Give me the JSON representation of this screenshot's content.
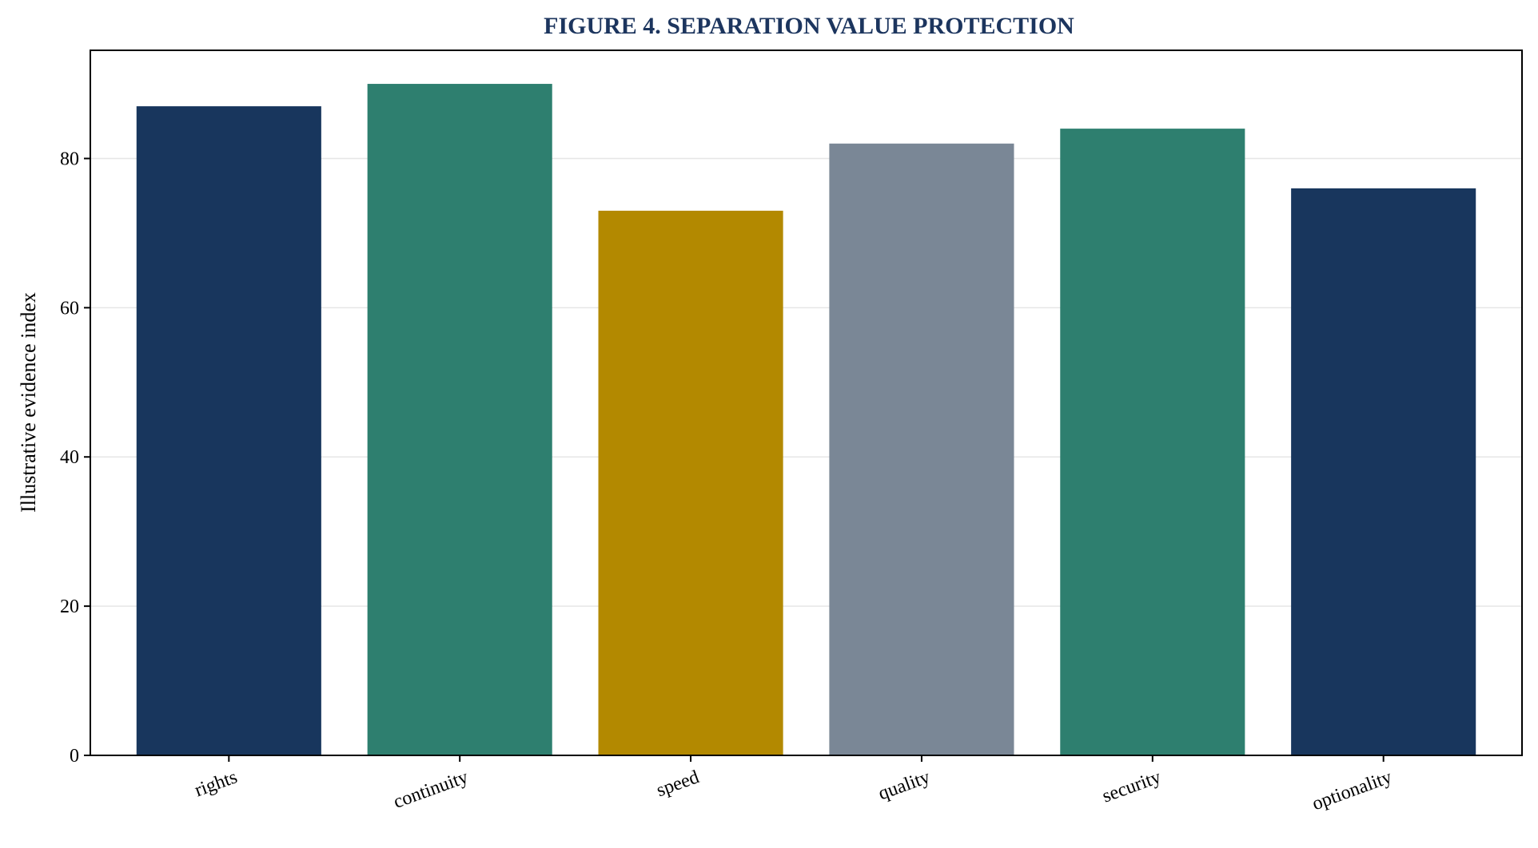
{
  "chart_data": {
    "type": "bar",
    "title": "FIGURE 4. SEPARATION VALUE PROTECTION",
    "xlabel": "",
    "ylabel": "Illustrative evidence index",
    "categories": [
      "rights",
      "continuity",
      "speed",
      "quality",
      "security",
      "optionality"
    ],
    "values": [
      87,
      90,
      73,
      82,
      84,
      76
    ],
    "bar_colors": [
      "#18365d",
      "#2e7f6f",
      "#b38900",
      "#7a8796",
      "#2e7f6f",
      "#18365d"
    ],
    "ylim": [
      0,
      94.5
    ],
    "yticks": [
      0,
      20,
      40,
      60,
      80
    ],
    "ytick_labels": [
      "0",
      "20",
      "40",
      "60",
      "80"
    ],
    "grid": "horizontal",
    "legend": "none",
    "x_tick_rotation_deg": 20
  },
  "colors": {
    "title": "#1c355e",
    "axis": "#000000",
    "grid": "#e6e6e6",
    "text": "#000000"
  }
}
